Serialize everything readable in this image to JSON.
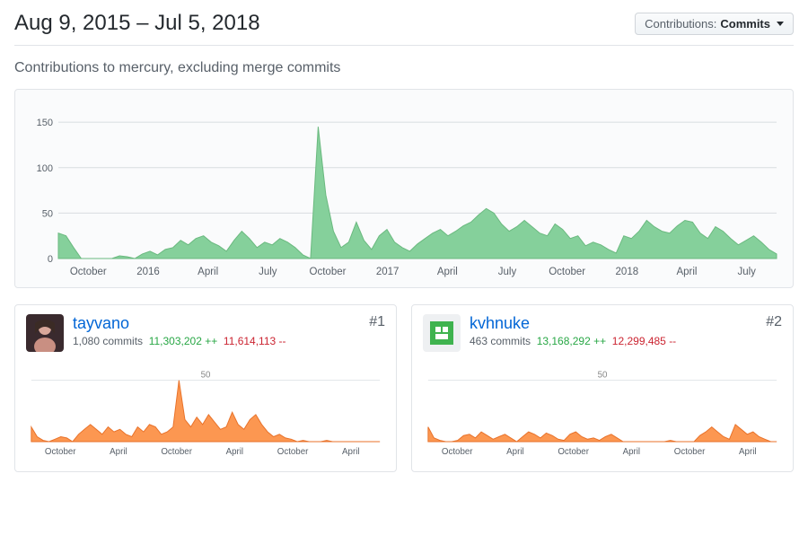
{
  "header": {
    "date_range": "Aug 9, 2015 – Jul 5, 2018",
    "dropdown_label": "Contributions:",
    "dropdown_value": "Commits"
  },
  "subtitle": "Contributions to mercury, excluding merge commits",
  "main_chart": {
    "type": "area",
    "background_color": "#fafbfc",
    "fill_color": "#85d09b",
    "stroke_color": "#6ab97f",
    "grid_color": "#d8dce0",
    "ylim": [
      0,
      160
    ],
    "yticks": [
      0,
      50,
      100,
      150
    ],
    "xticks": [
      "October",
      "2016",
      "April",
      "July",
      "October",
      "2017",
      "April",
      "July",
      "October",
      "2018",
      "April",
      "July"
    ],
    "values": [
      28,
      25,
      12,
      0,
      0,
      0,
      0,
      0,
      3,
      2,
      0,
      5,
      8,
      4,
      10,
      12,
      20,
      15,
      22,
      25,
      18,
      14,
      8,
      20,
      30,
      22,
      12,
      18,
      15,
      22,
      18,
      12,
      4,
      0,
      145,
      70,
      30,
      12,
      18,
      40,
      20,
      10,
      25,
      32,
      18,
      12,
      8,
      16,
      22,
      28,
      32,
      25,
      30,
      36,
      40,
      48,
      55,
      50,
      38,
      30,
      35,
      42,
      35,
      28,
      25,
      38,
      32,
      22,
      25,
      14,
      18,
      15,
      10,
      6,
      25,
      22,
      30,
      42,
      35,
      30,
      28,
      36,
      42,
      40,
      28,
      22,
      35,
      30,
      22,
      15,
      20,
      25,
      18,
      10,
      5
    ]
  },
  "contributors": [
    {
      "rank": "#1",
      "username": "tayvano",
      "commits_text": "1,080 commits",
      "additions": "11,303,202 ++",
      "deletions": "11,614,113 --",
      "avatar_bg": "#3a2a2e",
      "chart": {
        "type": "area",
        "fill_color": "#fb8532",
        "ylim": [
          0,
          60
        ],
        "ytick_label": "50",
        "xticks": [
          "October",
          "April",
          "October",
          "April",
          "October",
          "April"
        ],
        "values": [
          12,
          4,
          1,
          0,
          2,
          4,
          3,
          0,
          6,
          10,
          14,
          10,
          6,
          12,
          8,
          10,
          6,
          4,
          12,
          8,
          14,
          12,
          6,
          8,
          12,
          50,
          18,
          12,
          20,
          14,
          22,
          16,
          10,
          12,
          24,
          14,
          10,
          18,
          22,
          14,
          8,
          4,
          6,
          3,
          2,
          0,
          1,
          0,
          0,
          0,
          1,
          0,
          0,
          0,
          0,
          0,
          0,
          0,
          0,
          0
        ]
      }
    },
    {
      "rank": "#2",
      "username": "kvhnuke",
      "commits_text": "463 commits",
      "additions": "13,168,292 ++",
      "deletions": "12,299,485 --",
      "avatar_bg": "#3fb34f",
      "chart": {
        "type": "area",
        "fill_color": "#fb8532",
        "ylim": [
          0,
          60
        ],
        "ytick_label": "50",
        "xticks": [
          "October",
          "April",
          "October",
          "April",
          "October",
          "April"
        ],
        "values": [
          12,
          3,
          1,
          0,
          0,
          1,
          5,
          6,
          3,
          8,
          5,
          2,
          4,
          6,
          3,
          0,
          4,
          8,
          6,
          3,
          7,
          5,
          2,
          1,
          6,
          8,
          4,
          2,
          3,
          1,
          4,
          6,
          3,
          0,
          0,
          0,
          0,
          0,
          0,
          0,
          0,
          1,
          0,
          0,
          0,
          0,
          5,
          8,
          12,
          8,
          4,
          2,
          14,
          10,
          6,
          8,
          4,
          2,
          0,
          0
        ]
      }
    }
  ]
}
